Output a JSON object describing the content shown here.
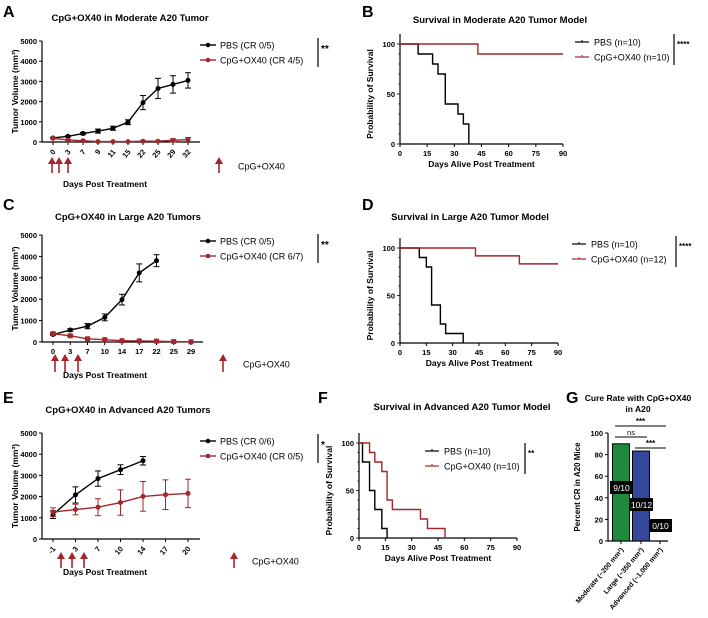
{
  "colors": {
    "pbs": "#000000",
    "cpg": "#a3262a",
    "moderate": "#1e8a3c",
    "large": "#34479a",
    "advanced": "#000000"
  },
  "chart_data": [
    {
      "panel": "A",
      "type": "line",
      "title": "CpG+OX40 in Moderate A20 Tumor",
      "xlabel": "Days Post Treatment",
      "ylabel": "Tumor Volume (mm³)",
      "ylim": [
        0,
        5000
      ],
      "yticks": [
        "0",
        "1000",
        "2000",
        "3000",
        "4000",
        "5000"
      ],
      "categories": [
        "0",
        "3",
        "7",
        "9",
        "11",
        "15",
        "22",
        "25",
        "29",
        "32"
      ],
      "series": [
        {
          "name": "PBS (CR 0/5)",
          "values": [
            200,
            280,
            420,
            540,
            680,
            980,
            1950,
            2650,
            2850,
            3050
          ],
          "errors": [
            30,
            40,
            60,
            100,
            100,
            120,
            350,
            500,
            430,
            380
          ]
        },
        {
          "name": "CpG+OX40 (CR 4/5)",
          "values": [
            180,
            100,
            60,
            20,
            20,
            20,
            40,
            40,
            80,
            120
          ],
          "errors": [
            20,
            20,
            20,
            10,
            10,
            10,
            20,
            20,
            80,
            100
          ]
        }
      ],
      "significance": "**",
      "treatment_label": "CpG+OX40"
    },
    {
      "panel": "B",
      "type": "survival",
      "title": "Survival in Moderate A20 Tumor Model",
      "xlabel": "Days Alive Post Treatment",
      "ylabel": "Probability of Survival",
      "xlim": [
        0,
        90
      ],
      "ylim": [
        0,
        100
      ],
      "xticks": [
        "0",
        "15",
        "30",
        "45",
        "60",
        "75",
        "90"
      ],
      "yticks": [
        "0",
        "50",
        "100"
      ],
      "series": [
        {
          "name": "PBS (n=10)",
          "steps": [
            [
              0,
              100
            ],
            [
              10,
              90
            ],
            [
              18,
              80
            ],
            [
              21,
              70
            ],
            [
              25,
              40
            ],
            [
              32,
              30
            ],
            [
              35,
              20
            ],
            [
              38,
              0
            ]
          ],
          "end": 38
        },
        {
          "name": "CpG+OX40 (n=10)",
          "steps": [
            [
              0,
              100
            ],
            [
              43,
              90
            ]
          ],
          "end": 90
        }
      ],
      "significance": "****"
    },
    {
      "panel": "C",
      "type": "line",
      "title": "CpG+OX40 in Large A20 Tumors",
      "xlabel": "Days Post Treatment",
      "ylabel": "Tumor Volume (mm³)",
      "ylim": [
        0,
        5000
      ],
      "yticks": [
        "0",
        "1000",
        "2000",
        "3000",
        "4000",
        "5000"
      ],
      "categories": [
        "0",
        "3",
        "7",
        "10",
        "14",
        "17",
        "22",
        "25",
        "29"
      ],
      "series": [
        {
          "name": "PBS (CR 0/5)",
          "values": [
            350,
            560,
            740,
            1150,
            1980,
            3230,
            3800,
            null,
            null
          ],
          "errors": [
            40,
            60,
            120,
            160,
            250,
            420,
            280,
            null,
            null
          ]
        },
        {
          "name": "CpG+OX40 (CR 6/7)",
          "values": [
            390,
            290,
            150,
            110,
            60,
            50,
            40,
            20,
            10
          ],
          "errors": [
            40,
            30,
            20,
            20,
            10,
            10,
            10,
            10,
            5
          ]
        }
      ],
      "significance": "**",
      "treatment_label": "CpG+OX40"
    },
    {
      "panel": "D",
      "type": "survival",
      "title": "Survival in Large A20 Tumor Model",
      "xlabel": "Days Alive Post Treatment",
      "ylabel": "Probability of Survival",
      "xlim": [
        0,
        90
      ],
      "ylim": [
        0,
        100
      ],
      "xticks": [
        "0",
        "15",
        "30",
        "45",
        "60",
        "75",
        "90"
      ],
      "yticks": [
        "0",
        "50",
        "100"
      ],
      "series": [
        {
          "name": "PBS (n=10)",
          "steps": [
            [
              0,
              100
            ],
            [
              11,
              90
            ],
            [
              15,
              80
            ],
            [
              18,
              40
            ],
            [
              23,
              20
            ],
            [
              26,
              10
            ],
            [
              36,
              0
            ]
          ],
          "end": 36
        },
        {
          "name": "CpG+OX40 (n=12)",
          "steps": [
            [
              0,
              100
            ],
            [
              43,
              91.7
            ],
            [
              68,
              83.3
            ]
          ],
          "end": 90
        }
      ],
      "significance": "****"
    },
    {
      "panel": "E",
      "type": "line",
      "title": "CpG+OX40 in Advanced A20 Tumors",
      "xlabel": "Days Post Treatment",
      "ylabel": "Tumor Volume (mm³)",
      "ylim": [
        0,
        5000
      ],
      "yticks": [
        "0",
        "1000",
        "2000",
        "3000",
        "4000",
        "5000"
      ],
      "categories": [
        "-1",
        "3",
        "7",
        "10",
        "14",
        "17",
        "20"
      ],
      "series": [
        {
          "name": "PBS (CR 0/6)",
          "values": [
            1150,
            2080,
            2850,
            3270,
            3690,
            null,
            null
          ],
          "errors": [
            180,
            380,
            360,
            230,
            200,
            null,
            null
          ]
        },
        {
          "name": "CpG+OX40 (CR 0/5)",
          "values": [
            1270,
            1390,
            1500,
            1720,
            2010,
            2090,
            2150
          ],
          "errors": [
            200,
            250,
            400,
            600,
            700,
            700,
            670
          ]
        }
      ],
      "significance": "*",
      "treatment_label": "CpG+OX40"
    },
    {
      "panel": "F",
      "type": "survival",
      "title": "Survival in Advanced A20 Tumor Model",
      "xlabel": "Days Alive Post Treatment",
      "ylabel": "Probability of Survival",
      "xlim": [
        0,
        90
      ],
      "ylim": [
        0,
        100
      ],
      "xticks": [
        "0",
        "15",
        "30",
        "45",
        "60",
        "75",
        "90"
      ],
      "yticks": [
        "0",
        "50",
        "100"
      ],
      "series": [
        {
          "name": "PBS (n=10)",
          "steps": [
            [
              0,
              100
            ],
            [
              2,
              80
            ],
            [
              6,
              50
            ],
            [
              9,
              30
            ],
            [
              13,
              10
            ],
            [
              16,
              0
            ]
          ],
          "end": 16
        },
        {
          "name": "CpG+OX40 (n=10)",
          "steps": [
            [
              0,
              100
            ],
            [
              6,
              90
            ],
            [
              9,
              80
            ],
            [
              13,
              70
            ],
            [
              16,
              40
            ],
            [
              19,
              30
            ],
            [
              35,
              20
            ],
            [
              39,
              10
            ],
            [
              49,
              0
            ]
          ],
          "end": 49
        }
      ],
      "significance": "**"
    },
    {
      "panel": "G",
      "type": "bar",
      "title": "Cure Rate with CpG+OX40",
      "title2": "in A20",
      "ylabel": "Percent CR in A20 Mice",
      "ylim": [
        0,
        100
      ],
      "yticks": [
        "0",
        "20",
        "40",
        "60",
        "80",
        "100"
      ],
      "categories": [
        "Moderate (~200 mm³)",
        "Large (~350 mm³)",
        "Advanced (~1,000 mm³)"
      ],
      "values": [
        90,
        83.3,
        0
      ],
      "data_labels": [
        "9/10",
        "10/12",
        "0/10"
      ],
      "comparisons": [
        {
          "pair": [
            0,
            2
          ],
          "label": "***"
        },
        {
          "pair": [
            0,
            1
          ],
          "label": "ns"
        },
        {
          "pair": [
            1,
            2
          ],
          "label": "***"
        }
      ]
    }
  ]
}
